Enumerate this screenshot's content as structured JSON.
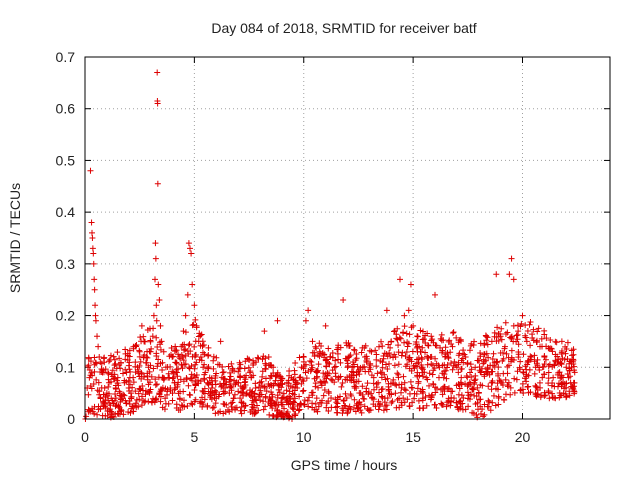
{
  "chart_data": {
    "type": "scatter",
    "title": "Day 084 of 2018, SRMTID for receiver batf",
    "xlabel": "GPS time / hours",
    "ylabel": "SRMTID / TECUs",
    "xlim": [
      0,
      24
    ],
    "ylim": [
      0,
      0.7
    ],
    "x_ticks": [
      0,
      5,
      10,
      15,
      20
    ],
    "y_ticks": [
      0,
      0.1,
      0.2,
      0.3,
      0.4,
      0.5,
      0.6,
      0.7
    ],
    "x_tick_labels": [
      "0",
      "5",
      "10",
      "15",
      "20"
    ],
    "y_tick_labels": [
      "0",
      "0.1",
      "0.2",
      "0.3",
      "0.4",
      "0.5",
      "0.6",
      "0.7"
    ],
    "grid": true,
    "marker": "plus",
    "series": [
      {
        "name": "SRMTID",
        "color": "#dd0000",
        "points": [
          [
            0.02,
            0.0
          ],
          [
            0.05,
            0.005
          ],
          [
            0.1,
            0.06
          ],
          [
            0.2,
            0.08
          ],
          [
            0.25,
            0.48
          ],
          [
            0.3,
            0.38
          ],
          [
            0.32,
            0.36
          ],
          [
            0.34,
            0.35
          ],
          [
            0.36,
            0.33
          ],
          [
            0.38,
            0.32
          ],
          [
            0.4,
            0.3
          ],
          [
            0.42,
            0.27
          ],
          [
            0.44,
            0.25
          ],
          [
            0.46,
            0.22
          ],
          [
            0.48,
            0.2
          ],
          [
            0.5,
            0.19
          ],
          [
            0.55,
            0.16
          ],
          [
            0.6,
            0.14
          ],
          [
            0.65,
            0.12
          ],
          [
            0.7,
            0.11
          ],
          [
            0.8,
            0.09
          ],
          [
            0.9,
            0.06
          ],
          [
            1.0,
            0.05
          ],
          [
            1.1,
            0.07
          ],
          [
            1.2,
            0.04
          ],
          [
            1.3,
            0.03
          ],
          [
            1.4,
            0.06
          ],
          [
            1.5,
            0.08
          ],
          [
            1.6,
            0.05
          ],
          [
            1.7,
            0.04
          ],
          [
            1.8,
            0.07
          ],
          [
            1.9,
            0.09
          ],
          [
            2.0,
            0.06
          ],
          [
            2.1,
            0.05
          ],
          [
            2.2,
            0.08
          ],
          [
            2.3,
            0.11
          ],
          [
            2.4,
            0.1
          ],
          [
            2.5,
            0.13
          ],
          [
            2.6,
            0.18
          ],
          [
            2.7,
            0.15
          ],
          [
            2.8,
            0.12
          ],
          [
            2.9,
            0.1
          ],
          [
            3.0,
            0.13
          ],
          [
            3.1,
            0.16
          ],
          [
            3.15,
            0.2
          ],
          [
            3.2,
            0.27
          ],
          [
            3.22,
            0.34
          ],
          [
            3.24,
            0.31
          ],
          [
            3.26,
            0.22
          ],
          [
            3.28,
            0.19
          ],
          [
            3.3,
            0.67
          ],
          [
            3.31,
            0.615
          ],
          [
            3.32,
            0.61
          ],
          [
            3.33,
            0.455
          ],
          [
            3.35,
            0.26
          ],
          [
            3.4,
            0.23
          ],
          [
            3.45,
            0.18
          ],
          [
            3.5,
            0.15
          ],
          [
            3.6,
            0.13
          ],
          [
            3.7,
            0.1
          ],
          [
            3.8,
            0.08
          ],
          [
            3.9,
            0.06
          ],
          [
            4.0,
            0.05
          ],
          [
            4.1,
            0.07
          ],
          [
            4.2,
            0.09
          ],
          [
            4.3,
            0.12
          ],
          [
            4.4,
            0.14
          ],
          [
            4.5,
            0.17
          ],
          [
            4.6,
            0.2
          ],
          [
            4.7,
            0.24
          ],
          [
            4.75,
            0.34
          ],
          [
            4.8,
            0.33
          ],
          [
            4.85,
            0.32
          ],
          [
            4.9,
            0.26
          ],
          [
            5.0,
            0.22
          ],
          [
            5.1,
            0.18
          ],
          [
            5.2,
            0.15
          ],
          [
            5.3,
            0.12
          ],
          [
            5.4,
            0.1
          ],
          [
            5.5,
            0.09
          ],
          [
            5.6,
            0.07
          ],
          [
            5.7,
            0.08
          ],
          [
            5.8,
            0.06
          ],
          [
            5.9,
            0.05
          ],
          [
            6.0,
            0.04
          ],
          [
            6.2,
            0.15
          ],
          [
            6.4,
            0.06
          ],
          [
            6.6,
            0.05
          ],
          [
            6.8,
            0.04
          ],
          [
            7.0,
            0.07
          ],
          [
            7.2,
            0.06
          ],
          [
            7.4,
            0.05
          ],
          [
            7.6,
            0.08
          ],
          [
            7.8,
            0.06
          ],
          [
            8.0,
            0.07
          ],
          [
            8.2,
            0.17
          ],
          [
            8.4,
            0.12
          ],
          [
            8.6,
            0.1
          ],
          [
            8.8,
            0.19
          ],
          [
            9.0,
            0.04
          ],
          [
            9.1,
            0.02
          ],
          [
            9.2,
            0.01
          ],
          [
            9.3,
            0.005
          ],
          [
            9.4,
            0.03
          ],
          [
            9.5,
            0.02
          ],
          [
            9.6,
            0.04
          ],
          [
            9.7,
            0.06
          ],
          [
            9.8,
            0.08
          ],
          [
            9.9,
            0.1
          ],
          [
            10.0,
            0.12
          ],
          [
            10.1,
            0.19
          ],
          [
            10.2,
            0.21
          ],
          [
            10.4,
            0.15
          ],
          [
            10.6,
            0.09
          ],
          [
            10.8,
            0.07
          ],
          [
            11.0,
            0.18
          ],
          [
            11.2,
            0.12
          ],
          [
            11.4,
            0.1
          ],
          [
            11.6,
            0.08
          ],
          [
            11.8,
            0.23
          ],
          [
            12.0,
            0.1
          ],
          [
            12.2,
            0.08
          ],
          [
            12.4,
            0.06
          ],
          [
            12.6,
            0.05
          ],
          [
            12.8,
            0.12
          ],
          [
            13.0,
            0.1
          ],
          [
            13.2,
            0.08
          ],
          [
            13.4,
            0.07
          ],
          [
            13.6,
            0.11
          ],
          [
            13.8,
            0.21
          ],
          [
            14.0,
            0.15
          ],
          [
            14.2,
            0.12
          ],
          [
            14.4,
            0.27
          ],
          [
            14.6,
            0.2
          ],
          [
            14.8,
            0.21
          ],
          [
            14.9,
            0.26
          ],
          [
            15.0,
            0.18
          ],
          [
            15.2,
            0.14
          ],
          [
            15.4,
            0.1
          ],
          [
            15.6,
            0.08
          ],
          [
            15.8,
            0.12
          ],
          [
            16.0,
            0.24
          ],
          [
            16.2,
            0.1
          ],
          [
            16.4,
            0.08
          ],
          [
            16.6,
            0.12
          ],
          [
            16.8,
            0.14
          ],
          [
            17.0,
            0.1
          ],
          [
            17.2,
            0.08
          ],
          [
            17.4,
            0.12
          ],
          [
            17.6,
            0.09
          ],
          [
            17.8,
            0.07
          ],
          [
            18.0,
            0.05
          ],
          [
            18.1,
            0.01
          ],
          [
            18.2,
            0.005
          ],
          [
            18.4,
            0.1
          ],
          [
            18.6,
            0.15
          ],
          [
            18.8,
            0.28
          ],
          [
            19.0,
            0.16
          ],
          [
            19.2,
            0.14
          ],
          [
            19.4,
            0.28
          ],
          [
            19.5,
            0.31
          ],
          [
            19.6,
            0.27
          ],
          [
            19.8,
            0.17
          ],
          [
            20.0,
            0.2
          ],
          [
            20.2,
            0.15
          ],
          [
            20.4,
            0.12
          ],
          [
            20.6,
            0.1
          ],
          [
            20.8,
            0.14
          ],
          [
            21.0,
            0.12
          ],
          [
            21.2,
            0.09
          ],
          [
            21.4,
            0.08
          ],
          [
            21.6,
            0.11
          ],
          [
            21.8,
            0.15
          ],
          [
            22.0,
            0.1
          ],
          [
            22.1,
            0.08
          ],
          [
            22.2,
            0.07
          ],
          [
            22.3,
            0.06
          ]
        ],
        "band": {
          "description_x_range": [
            0.1,
            22.4
          ],
          "profile": [
            [
              0.1,
              0.01,
              0.12
            ],
            [
              1.0,
              0.0,
              0.12
            ],
            [
              2.0,
              0.01,
              0.14
            ],
            [
              3.0,
              0.03,
              0.18
            ],
            [
              4.0,
              0.01,
              0.14
            ],
            [
              5.0,
              0.03,
              0.2
            ],
            [
              6.0,
              0.01,
              0.12
            ],
            [
              7.0,
              0.01,
              0.11
            ],
            [
              8.0,
              0.01,
              0.13
            ],
            [
              9.0,
              0.0,
              0.08
            ],
            [
              9.5,
              0.0,
              0.1
            ],
            [
              10.0,
              0.02,
              0.14
            ],
            [
              11.0,
              0.01,
              0.15
            ],
            [
              12.0,
              0.01,
              0.15
            ],
            [
              13.0,
              0.01,
              0.14
            ],
            [
              14.0,
              0.02,
              0.18
            ],
            [
              15.0,
              0.02,
              0.18
            ],
            [
              16.0,
              0.02,
              0.16
            ],
            [
              17.0,
              0.02,
              0.17
            ],
            [
              18.0,
              0.0,
              0.15
            ],
            [
              19.0,
              0.03,
              0.19
            ],
            [
              20.0,
              0.05,
              0.2
            ],
            [
              21.0,
              0.04,
              0.17
            ],
            [
              22.0,
              0.04,
              0.15
            ],
            [
              22.4,
              0.05,
              0.14
            ]
          ],
          "count": 1700
        }
      }
    ]
  }
}
